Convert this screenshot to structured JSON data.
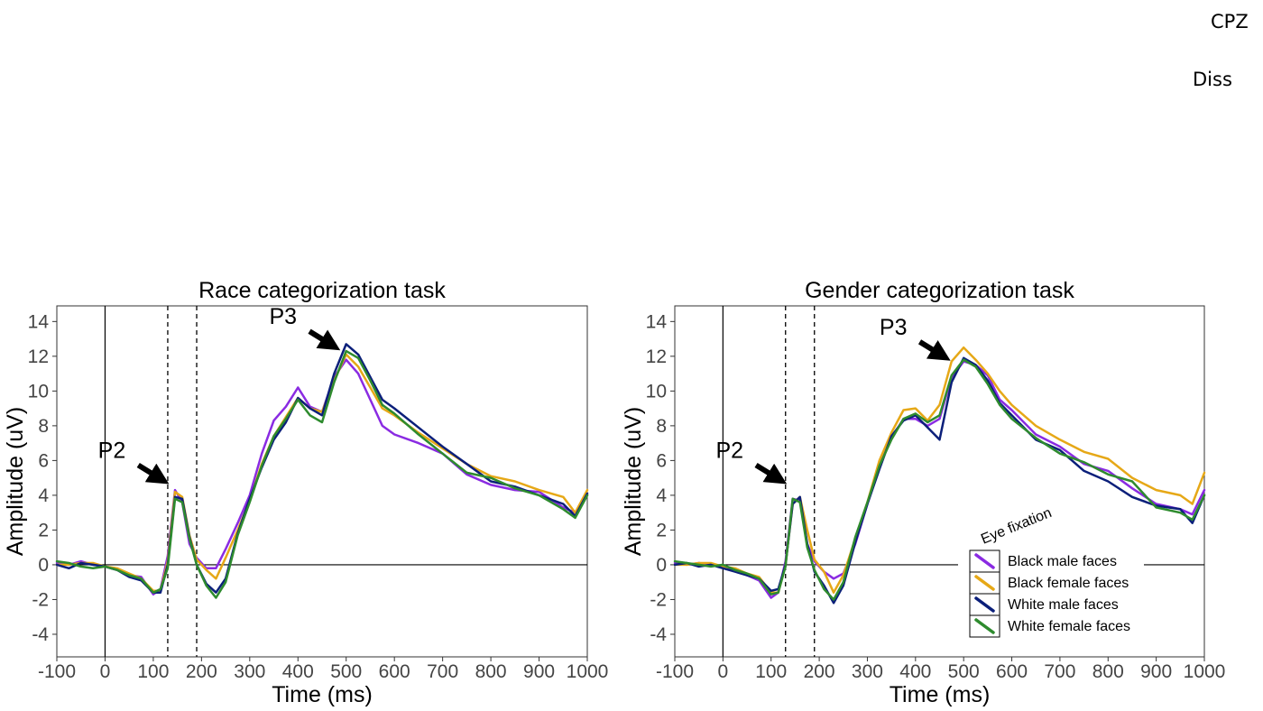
{
  "corner_labels": {
    "top": "CPZ",
    "second": "Diss"
  },
  "legend": {
    "title": "Eye fixation",
    "entries": [
      {
        "label": "Black male faces",
        "color": "#8a2be2"
      },
      {
        "label": "Black female faces",
        "color": "#e6a817"
      },
      {
        "label": "White male faces",
        "color": "#0b1f7a"
      },
      {
        "label": "White female faces",
        "color": "#2e8b2e"
      }
    ]
  },
  "chart_data": [
    {
      "type": "line",
      "title": "Race categorization task",
      "xlabel": "Time (ms)",
      "ylabel": "Amplitude (uV)",
      "xlim": [
        -100,
        1000
      ],
      "ylim": [
        -5.3,
        14.9
      ],
      "xticks": [
        -100,
        0,
        100,
        200,
        300,
        400,
        500,
        600,
        700,
        800,
        900,
        1000
      ],
      "yticks": [
        -4,
        -2,
        0,
        2,
        4,
        6,
        8,
        10,
        12,
        14
      ],
      "vlines": [
        130,
        190
      ],
      "annotations": [
        {
          "text": "P2",
          "x": 125,
          "y": 4.8
        },
        {
          "text": "P3",
          "x": 480,
          "y": 12.5
        }
      ],
      "x": [
        -100,
        -75,
        -50,
        -25,
        0,
        25,
        50,
        75,
        100,
        115,
        130,
        145,
        160,
        175,
        190,
        210,
        230,
        250,
        275,
        300,
        325,
        350,
        375,
        400,
        425,
        450,
        475,
        500,
        525,
        550,
        575,
        600,
        650,
        700,
        750,
        800,
        850,
        900,
        950,
        975,
        1000
      ],
      "series": [
        {
          "name": "Black male faces",
          "color": "#8a2be2",
          "values": [
            0.1,
            0.0,
            0.2,
            0.0,
            -0.1,
            -0.3,
            -0.6,
            -0.7,
            -1.7,
            -1.4,
            0.5,
            4.3,
            3.6,
            1.2,
            0.4,
            -0.2,
            -0.2,
            0.9,
            2.4,
            4.0,
            6.4,
            8.3,
            9.1,
            10.2,
            9.1,
            8.8,
            10.8,
            11.8,
            11.0,
            9.5,
            8.0,
            7.5,
            7.0,
            6.4,
            5.2,
            4.6,
            4.3,
            4.2,
            3.3,
            3.0,
            4.0
          ]
        },
        {
          "name": "Black female faces",
          "color": "#e6a817",
          "values": [
            0.0,
            0.0,
            0.1,
            0.1,
            -0.1,
            -0.2,
            -0.5,
            -0.8,
            -1.5,
            -1.5,
            0.2,
            4.2,
            3.9,
            1.7,
            0.3,
            -0.3,
            -0.8,
            0.4,
            2.0,
            3.7,
            5.8,
            7.4,
            8.5,
            9.6,
            9.0,
            8.8,
            10.6,
            12.1,
            11.4,
            10.2,
            9.0,
            8.6,
            7.6,
            6.7,
            5.8,
            5.1,
            4.8,
            4.3,
            3.9,
            3.0,
            4.3
          ]
        },
        {
          "name": "White male faces",
          "color": "#0b1f7a",
          "values": [
            0.0,
            -0.2,
            0.1,
            0.0,
            -0.1,
            -0.3,
            -0.7,
            -0.9,
            -1.6,
            -1.6,
            0.0,
            3.9,
            3.8,
            1.6,
            0.0,
            -1.1,
            -1.6,
            -0.8,
            1.8,
            3.8,
            5.6,
            7.2,
            8.2,
            9.6,
            9.0,
            8.6,
            11.0,
            12.7,
            12.1,
            10.8,
            9.5,
            9.0,
            7.9,
            6.8,
            5.8,
            4.8,
            4.5,
            4.0,
            3.5,
            2.8,
            4.1
          ]
        },
        {
          "name": "White female faces",
          "color": "#2e8b2e",
          "values": [
            0.2,
            0.1,
            -0.1,
            -0.2,
            -0.1,
            -0.3,
            -0.6,
            -0.8,
            -1.6,
            -1.4,
            -0.2,
            3.8,
            3.6,
            1.5,
            0.0,
            -1.2,
            -1.9,
            -1.0,
            1.7,
            3.6,
            5.7,
            7.4,
            8.4,
            9.5,
            8.6,
            8.2,
            10.5,
            12.3,
            11.9,
            10.6,
            9.2,
            8.7,
            7.5,
            6.4,
            5.3,
            5.0,
            4.4,
            4.0,
            3.2,
            2.7,
            4.0
          ]
        }
      ]
    },
    {
      "type": "line",
      "title": "Gender categorization task",
      "xlabel": "Time (ms)",
      "ylabel": "Amplitude (uV)",
      "xlim": [
        -100,
        1000
      ],
      "ylim": [
        -5.3,
        14.9
      ],
      "xticks": [
        -100,
        0,
        100,
        200,
        300,
        400,
        500,
        600,
        700,
        800,
        900,
        1000
      ],
      "yticks": [
        -4,
        -2,
        0,
        2,
        4,
        6,
        8,
        10,
        12,
        14
      ],
      "vlines": [
        130,
        190
      ],
      "annotations": [
        {
          "text": "P2",
          "x": 125,
          "y": 4.8
        },
        {
          "text": "P3",
          "x": 465,
          "y": 11.9
        }
      ],
      "x": [
        -100,
        -75,
        -50,
        -25,
        0,
        25,
        50,
        75,
        100,
        115,
        130,
        145,
        160,
        175,
        190,
        210,
        230,
        250,
        275,
        300,
        325,
        350,
        375,
        400,
        425,
        450,
        475,
        500,
        525,
        550,
        575,
        600,
        650,
        700,
        750,
        800,
        850,
        900,
        950,
        975,
        1000
      ],
      "series": [
        {
          "name": "Black male faces",
          "color": "#8a2be2",
          "values": [
            0.1,
            0.0,
            0.1,
            0.0,
            -0.1,
            -0.3,
            -0.6,
            -0.9,
            -1.9,
            -1.6,
            0.2,
            3.8,
            3.7,
            1.2,
            0.2,
            -0.4,
            -0.8,
            -0.5,
            1.2,
            3.5,
            5.7,
            7.3,
            8.4,
            8.4,
            8.0,
            8.4,
            10.8,
            11.7,
            11.5,
            10.9,
            9.5,
            8.9,
            7.5,
            6.8,
            5.8,
            5.4,
            4.4,
            3.5,
            3.2,
            2.9,
            4.3
          ]
        },
        {
          "name": "Black female faces",
          "color": "#e6a817",
          "values": [
            0.0,
            0.0,
            0.1,
            0.1,
            -0.1,
            -0.2,
            -0.5,
            -0.7,
            -1.6,
            -1.6,
            0.0,
            3.5,
            3.9,
            2.0,
            0.3,
            -0.4,
            -1.6,
            -0.6,
            1.5,
            3.6,
            6.0,
            7.6,
            8.9,
            9.0,
            8.3,
            9.2,
            11.7,
            12.5,
            11.8,
            11.0,
            10.0,
            9.2,
            8.0,
            7.2,
            6.5,
            6.1,
            5.0,
            4.3,
            4.0,
            3.5,
            5.3
          ]
        },
        {
          "name": "White male faces",
          "color": "#0b1f7a",
          "values": [
            0.0,
            0.1,
            -0.1,
            0.0,
            -0.2,
            -0.4,
            -0.6,
            -0.8,
            -1.5,
            -1.4,
            0.0,
            3.5,
            3.9,
            1.2,
            -0.4,
            -1.2,
            -2.2,
            -1.2,
            1.3,
            3.5,
            5.5,
            7.4,
            8.3,
            8.6,
            7.9,
            7.2,
            10.5,
            11.9,
            11.5,
            10.6,
            9.3,
            8.6,
            7.2,
            6.6,
            5.4,
            4.8,
            3.9,
            3.4,
            3.2,
            2.4,
            4.0
          ]
        },
        {
          "name": "White female faces",
          "color": "#2e8b2e",
          "values": [
            0.2,
            0.1,
            0.0,
            -0.1,
            0.0,
            -0.3,
            -0.5,
            -0.8,
            -1.7,
            -1.6,
            -0.1,
            3.8,
            3.6,
            1.0,
            -0.3,
            -1.4,
            -2.0,
            -1.0,
            1.6,
            3.6,
            5.7,
            7.2,
            8.4,
            8.7,
            8.2,
            8.6,
            10.9,
            11.8,
            11.4,
            10.4,
            9.2,
            8.4,
            7.3,
            6.4,
            5.9,
            5.2,
            4.8,
            3.3,
            3.0,
            2.6,
            4.0
          ]
        }
      ]
    }
  ]
}
